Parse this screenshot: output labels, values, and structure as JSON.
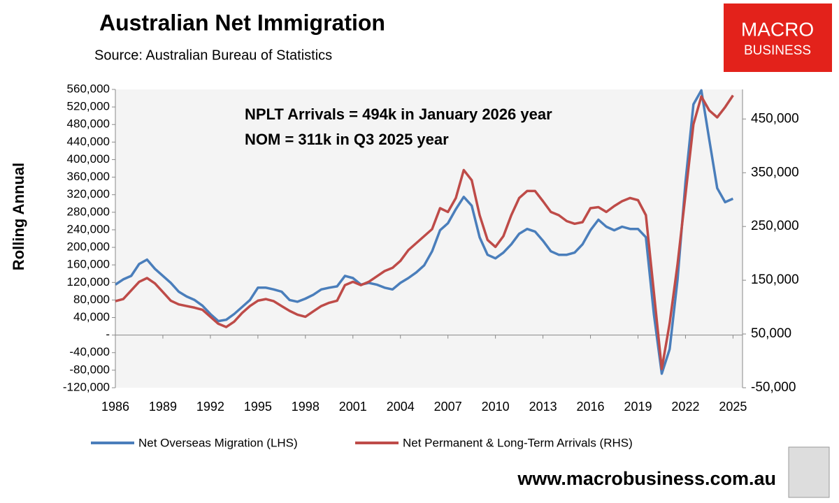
{
  "chart_data": {
    "type": "line",
    "title": "Australian Net Immigration",
    "subtitle": "Source: Australian Bureau of Statistics",
    "y_label": "Rolling Annual",
    "annotations": [
      "NPLT Arrivals = 494k in January 2026 year",
      "NOM = 311k in Q3 2025 year"
    ],
    "logo": [
      "MACRO",
      "BUSINESS"
    ],
    "footer": "www.macrobusiness.com.au",
    "x": [
      1986,
      1986.5,
      1987,
      1987.5,
      1988,
      1988.5,
      1989,
      1989.5,
      1990,
      1990.5,
      1991,
      1991.5,
      1992,
      1992.5,
      1993,
      1993.5,
      1994,
      1994.5,
      1995,
      1995.5,
      1996,
      1996.5,
      1997,
      1997.5,
      1998,
      1998.5,
      1999,
      1999.5,
      2000,
      2000.5,
      2001,
      2001.5,
      2002,
      2002.5,
      2003,
      2003.5,
      2004,
      2004.5,
      2005,
      2005.5,
      2006,
      2006.5,
      2007,
      2007.5,
      2008,
      2008.5,
      2009,
      2009.5,
      2010,
      2010.5,
      2011,
      2011.5,
      2012,
      2012.5,
      2013,
      2013.5,
      2014,
      2014.5,
      2015,
      2015.5,
      2016,
      2016.5,
      2017,
      2017.5,
      2018,
      2018.5,
      2019,
      2019.5,
      2020,
      2020.5,
      2021,
      2021.5,
      2022,
      2022.5,
      2023,
      2023.5,
      2024,
      2024.5,
      2025
    ],
    "xlim": [
      1986,
      2025.6
    ],
    "xticks": [
      1986,
      1989,
      1992,
      1995,
      1998,
      2001,
      2004,
      2007,
      2010,
      2013,
      2016,
      2019,
      2022,
      2025
    ],
    "ylim": [
      -120000,
      560000
    ],
    "yticks": [
      {
        "value": -120000,
        "label": "-120,000"
      },
      {
        "value": -80000,
        "label": "-80,000"
      },
      {
        "value": -40000,
        "label": "-40,000"
      },
      {
        "value": 0,
        "label": "-"
      },
      {
        "value": 40000,
        "label": "40,000"
      },
      {
        "value": 80000,
        "label": "80,000"
      },
      {
        "value": 120000,
        "label": "120,000"
      },
      {
        "value": 160000,
        "label": "160,000"
      },
      {
        "value": 200000,
        "label": "200,000"
      },
      {
        "value": 240000,
        "label": "240,000"
      },
      {
        "value": 280000,
        "label": "280,000"
      },
      {
        "value": 320000,
        "label": "320,000"
      },
      {
        "value": 360000,
        "label": "360,000"
      },
      {
        "value": 400000,
        "label": "400,000"
      },
      {
        "value": 440000,
        "label": "440,000"
      },
      {
        "value": 480000,
        "label": "480,000"
      },
      {
        "value": 520000,
        "label": "520,000"
      },
      {
        "value": 560000,
        "label": "560,000"
      }
    ],
    "y2lim": [
      -50000,
      505000
    ],
    "y2ticks": [
      {
        "value": -50000,
        "label": "-50,000"
      },
      {
        "value": 50000,
        "label": "50,000"
      },
      {
        "value": 150000,
        "label": "150,000"
      },
      {
        "value": 250000,
        "label": "250,000"
      },
      {
        "value": 350000,
        "label": "350,000"
      },
      {
        "value": 450000,
        "label": "450,000"
      }
    ],
    "series": [
      {
        "name": "Net Overseas Migration (LHS)",
        "color": "#4a7ebb",
        "values": [
          115000,
          127000,
          135000,
          162000,
          172000,
          151000,
          135000,
          119000,
          99000,
          88000,
          80000,
          67000,
          48000,
          32000,
          35000,
          48000,
          64000,
          80000,
          108000,
          108000,
          104000,
          99000,
          80000,
          76000,
          83000,
          92000,
          104000,
          108000,
          111000,
          135000,
          130000,
          115000,
          119000,
          115000,
          108000,
          104000,
          119000,
          130000,
          143000,
          159000,
          191000,
          239000,
          255000,
          287000,
          315000,
          295000,
          223000,
          183000,
          175000,
          188000,
          207000,
          231000,
          242000,
          236000,
          215000,
          191000,
          183000,
          183000,
          188000,
          207000,
          239000,
          263000,
          247000,
          239000,
          247000,
          242000,
          242000,
          223000,
          48000,
          -88000,
          -32000,
          127000,
          350000,
          526000,
          558000,
          446000,
          335000,
          303000,
          311000
        ]
      },
      {
        "name": "Net Permanent & Long-Term Arrivals (RHS)",
        "color": "#be4b48",
        "axis": "y2",
        "values": [
          111000,
          115000,
          131000,
          147000,
          154000,
          144000,
          128000,
          112000,
          105000,
          102000,
          99000,
          95000,
          82000,
          69000,
          63000,
          73000,
          89000,
          102000,
          112000,
          115000,
          111000,
          102000,
          93000,
          86000,
          82000,
          92000,
          102000,
          108000,
          112000,
          141000,
          147000,
          141000,
          147000,
          157000,
          167000,
          173000,
          186000,
          206000,
          219000,
          232000,
          245000,
          284000,
          277000,
          303000,
          355000,
          336000,
          271000,
          225000,
          212000,
          232000,
          271000,
          303000,
          316000,
          316000,
          297000,
          277000,
          271000,
          260000,
          255000,
          258000,
          284000,
          286000,
          277000,
          288000,
          297000,
          303000,
          299000,
          271000,
          128000,
          -15000,
          70000,
          180000,
          310000,
          440000,
          492000,
          466000,
          453000,
          472000,
          494000
        ]
      }
    ]
  }
}
